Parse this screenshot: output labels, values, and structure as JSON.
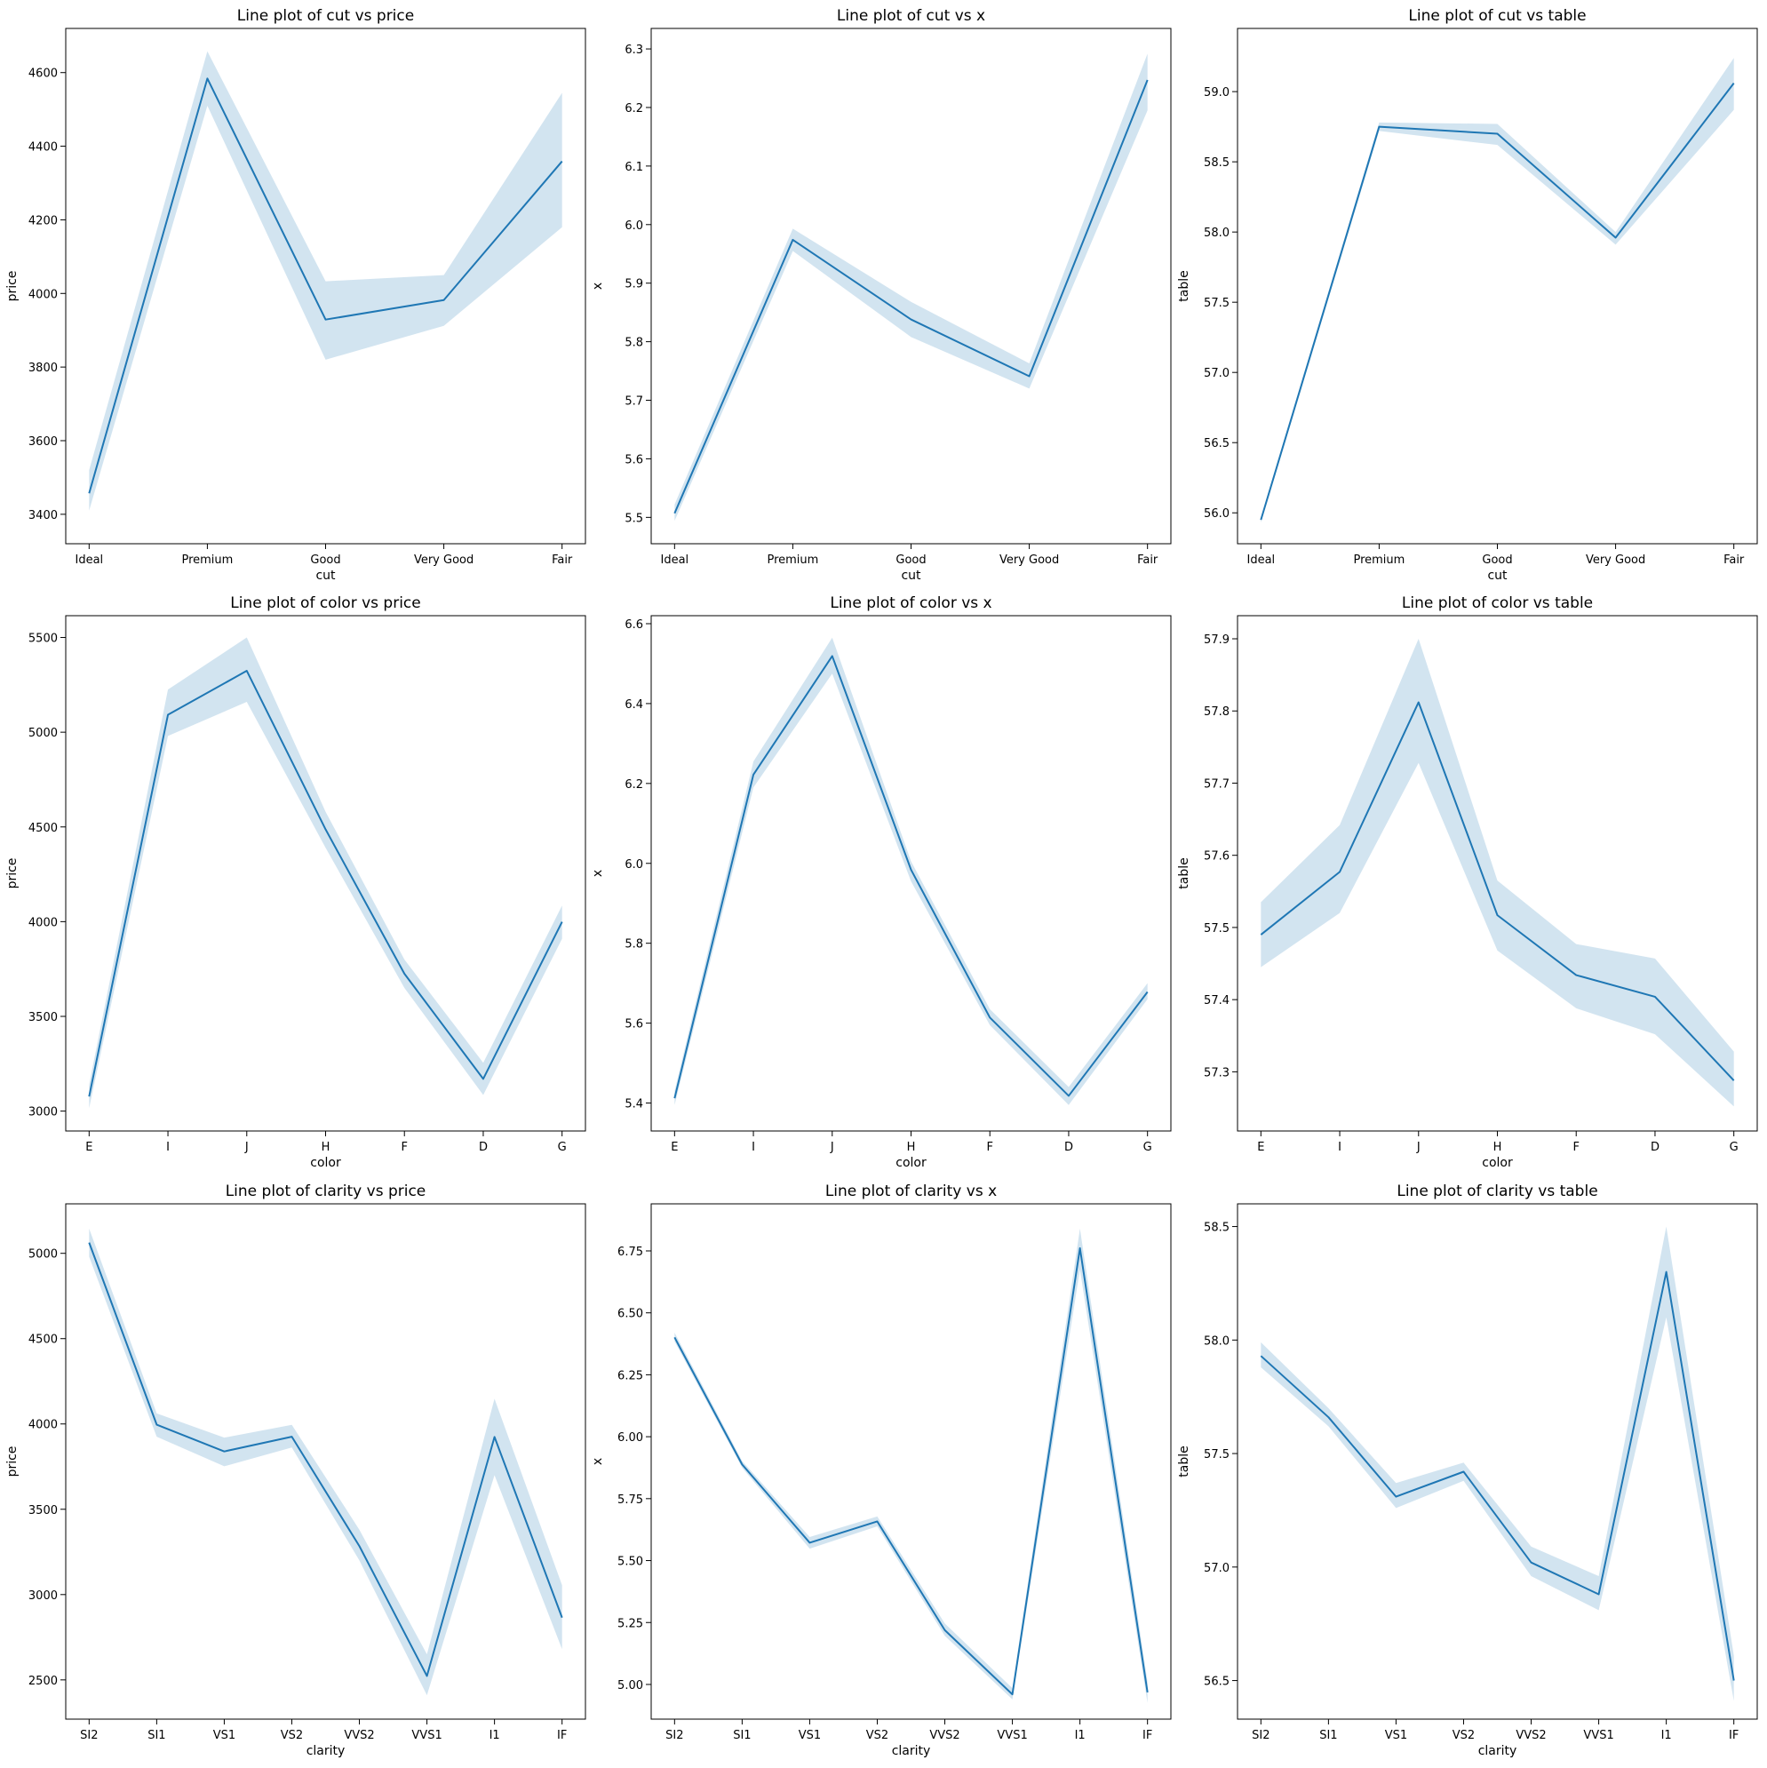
{
  "figure": {
    "line_color": "#1f77b4",
    "band_color": "#1f77b4",
    "band_opacity": 0.2,
    "background": "#ffffff"
  },
  "chart_data": [
    {
      "type": "line",
      "title": "Line plot of cut vs price",
      "xlabel": "cut",
      "ylabel": "price",
      "categories": [
        "Ideal",
        "Premium",
        "Good",
        "Very Good",
        "Fair"
      ],
      "values": [
        3457,
        4584,
        3929,
        3982,
        4359
      ],
      "ci_lower": [
        3410,
        4510,
        3820,
        3912,
        4180
      ],
      "ci_upper": [
        3520,
        4658,
        4033,
        4050,
        4545
      ],
      "ylim": [
        3320,
        4720
      ],
      "yticks": [
        3400,
        3600,
        3800,
        4000,
        4200,
        4400,
        4600
      ],
      "ytick_labels": [
        "3400",
        "3600",
        "3800",
        "4000",
        "4200",
        "4400",
        "4600"
      ],
      "grid": false
    },
    {
      "type": "line",
      "title": "Line plot of cut vs x",
      "xlabel": "cut",
      "ylabel": "x",
      "categories": [
        "Ideal",
        "Premium",
        "Good",
        "Very Good",
        "Fair"
      ],
      "values": [
        5.507,
        5.974,
        5.838,
        5.741,
        6.247
      ],
      "ci_lower": [
        5.494,
        5.955,
        5.808,
        5.72,
        6.195
      ],
      "ci_upper": [
        5.522,
        5.993,
        5.868,
        5.763,
        6.292
      ],
      "ylim": [
        5.455,
        6.335
      ],
      "yticks": [
        5.5,
        5.6,
        5.7,
        5.8,
        5.9,
        6.0,
        6.1,
        6.2,
        6.3
      ],
      "ytick_labels": [
        "5.5",
        "5.6",
        "5.7",
        "5.8",
        "5.9",
        "6.0",
        "6.1",
        "6.2",
        "6.3"
      ],
      "grid": false
    },
    {
      "type": "line",
      "title": "Line plot of cut vs table",
      "xlabel": "cut",
      "ylabel": "table",
      "categories": [
        "Ideal",
        "Premium",
        "Good",
        "Very Good",
        "Fair"
      ],
      "values": [
        55.95,
        58.75,
        58.7,
        57.96,
        59.06
      ],
      "ci_lower": [
        55.93,
        58.72,
        58.62,
        57.91,
        58.87
      ],
      "ci_upper": [
        55.97,
        58.78,
        58.77,
        58.0,
        59.24
      ],
      "ylim": [
        55.78,
        59.45
      ],
      "yticks": [
        56.0,
        56.5,
        57.0,
        57.5,
        58.0,
        58.5,
        59.0
      ],
      "ytick_labels": [
        "56.0",
        "56.5",
        "57.0",
        "57.5",
        "58.0",
        "58.5",
        "59.0"
      ],
      "grid": false
    },
    {
      "type": "line",
      "title": "Line plot of color vs price",
      "xlabel": "color",
      "ylabel": "price",
      "categories": [
        "E",
        "I",
        "J",
        "H",
        "F",
        "D",
        "G"
      ],
      "values": [
        3077,
        5092,
        5324,
        4487,
        3725,
        3170,
        3999
      ],
      "ci_lower": [
        3015,
        4980,
        5160,
        4390,
        3650,
        3085,
        3910
      ],
      "ci_upper": [
        3140,
        5225,
        5500,
        4580,
        3800,
        3255,
        4085
      ],
      "ylim": [
        2895,
        5615
      ],
      "yticks": [
        3000,
        3500,
        4000,
        4500,
        5000,
        5500
      ],
      "ytick_labels": [
        "3000",
        "3500",
        "4000",
        "4500",
        "5000",
        "5500"
      ],
      "grid": false
    },
    {
      "type": "line",
      "title": "Line plot of color vs x",
      "xlabel": "color",
      "ylabel": "x",
      "categories": [
        "E",
        "I",
        "J",
        "H",
        "F",
        "D",
        "G"
      ],
      "values": [
        5.412,
        6.222,
        6.519,
        5.984,
        5.614,
        5.418,
        5.678
      ],
      "ci_lower": [
        5.395,
        6.19,
        6.475,
        5.955,
        5.595,
        5.395,
        5.66
      ],
      "ci_upper": [
        5.43,
        6.255,
        6.565,
        6.005,
        5.635,
        5.44,
        5.7
      ],
      "ylim": [
        5.33,
        6.62
      ],
      "yticks": [
        5.4,
        5.6,
        5.8,
        6.0,
        6.2,
        6.4,
        6.6
      ],
      "ytick_labels": [
        "5.4",
        "5.6",
        "5.8",
        "6.0",
        "6.2",
        "6.4",
        "6.6"
      ],
      "grid": false
    },
    {
      "type": "line",
      "title": "Line plot of color vs table",
      "xlabel": "color",
      "ylabel": "table",
      "categories": [
        "E",
        "I",
        "J",
        "H",
        "F",
        "D",
        "G"
      ],
      "values": [
        57.49,
        57.577,
        57.812,
        57.517,
        57.434,
        57.404,
        57.288
      ],
      "ci_lower": [
        57.445,
        57.52,
        57.728,
        57.468,
        57.388,
        57.352,
        57.252
      ],
      "ci_upper": [
        57.535,
        57.642,
        57.9,
        57.565,
        57.477,
        57.457,
        57.328
      ],
      "ylim": [
        57.218,
        57.932
      ],
      "yticks": [
        57.3,
        57.4,
        57.5,
        57.6,
        57.7,
        57.8,
        57.9
      ],
      "ytick_labels": [
        "57.3",
        "57.4",
        "57.5",
        "57.6",
        "57.7",
        "57.8",
        "57.9"
      ],
      "grid": false
    },
    {
      "type": "line",
      "title": "Line plot of clarity vs price",
      "xlabel": "clarity",
      "ylabel": "price",
      "categories": [
        "SI2",
        "SI1",
        "VS1",
        "VS2",
        "VVS2",
        "VVS1",
        "I1",
        "IF"
      ],
      "values": [
        5063,
        3996,
        3839,
        3925,
        3284,
        2523,
        3924,
        2865
      ],
      "ci_lower": [
        4980,
        3925,
        3752,
        3862,
        3200,
        2410,
        3700,
        2680
      ],
      "ci_upper": [
        5145,
        4062,
        3920,
        3995,
        3380,
        2650,
        4148,
        3055
      ],
      "ylim": [
        2270,
        5290
      ],
      "yticks": [
        2500,
        3000,
        3500,
        4000,
        4500,
        5000
      ],
      "ytick_labels": [
        "2500",
        "3000",
        "3500",
        "4000",
        "4500",
        "5000"
      ],
      "grid": false
    },
    {
      "type": "line",
      "title": "Line plot of clarity vs x",
      "xlabel": "clarity",
      "ylabel": "x",
      "categories": [
        "SI2",
        "SI1",
        "VS1",
        "VS2",
        "VVS2",
        "VVS1",
        "I1",
        "IF"
      ],
      "values": [
        6.401,
        5.888,
        5.572,
        5.658,
        5.219,
        4.96,
        6.761,
        4.968
      ],
      "ci_lower": [
        6.385,
        5.875,
        5.548,
        5.638,
        5.196,
        4.94,
        6.675,
        4.925
      ],
      "ci_upper": [
        6.42,
        5.902,
        5.595,
        5.678,
        5.246,
        4.985,
        6.84,
        5.01
      ],
      "ylim": [
        4.86,
        6.94
      ],
      "yticks": [
        5.0,
        5.25,
        5.5,
        5.75,
        6.0,
        6.25,
        6.5,
        6.75
      ],
      "ytick_labels": [
        "5.00",
        "5.25",
        "5.50",
        "5.75",
        "6.00",
        "6.25",
        "6.50",
        "6.75"
      ],
      "grid": false
    },
    {
      "type": "line",
      "title": "Line plot of clarity vs table",
      "xlabel": "clarity",
      "ylabel": "table",
      "categories": [
        "SI2",
        "SI1",
        "VS1",
        "VS2",
        "VVS2",
        "VVS1",
        "I1",
        "IF"
      ],
      "values": [
        57.93,
        57.66,
        57.31,
        57.42,
        57.02,
        56.88,
        58.3,
        56.5
      ],
      "ci_lower": [
        57.88,
        57.62,
        57.26,
        57.38,
        56.96,
        56.81,
        58.1,
        56.41
      ],
      "ci_upper": [
        57.99,
        57.7,
        57.37,
        57.46,
        57.09,
        56.96,
        58.5,
        56.61
      ],
      "ylim": [
        56.33,
        58.6
      ],
      "yticks": [
        56.5,
        57.0,
        57.5,
        58.0,
        58.5
      ],
      "ytick_labels": [
        "56.5",
        "57.0",
        "57.5",
        "58.0",
        "58.5"
      ],
      "grid": false
    }
  ]
}
